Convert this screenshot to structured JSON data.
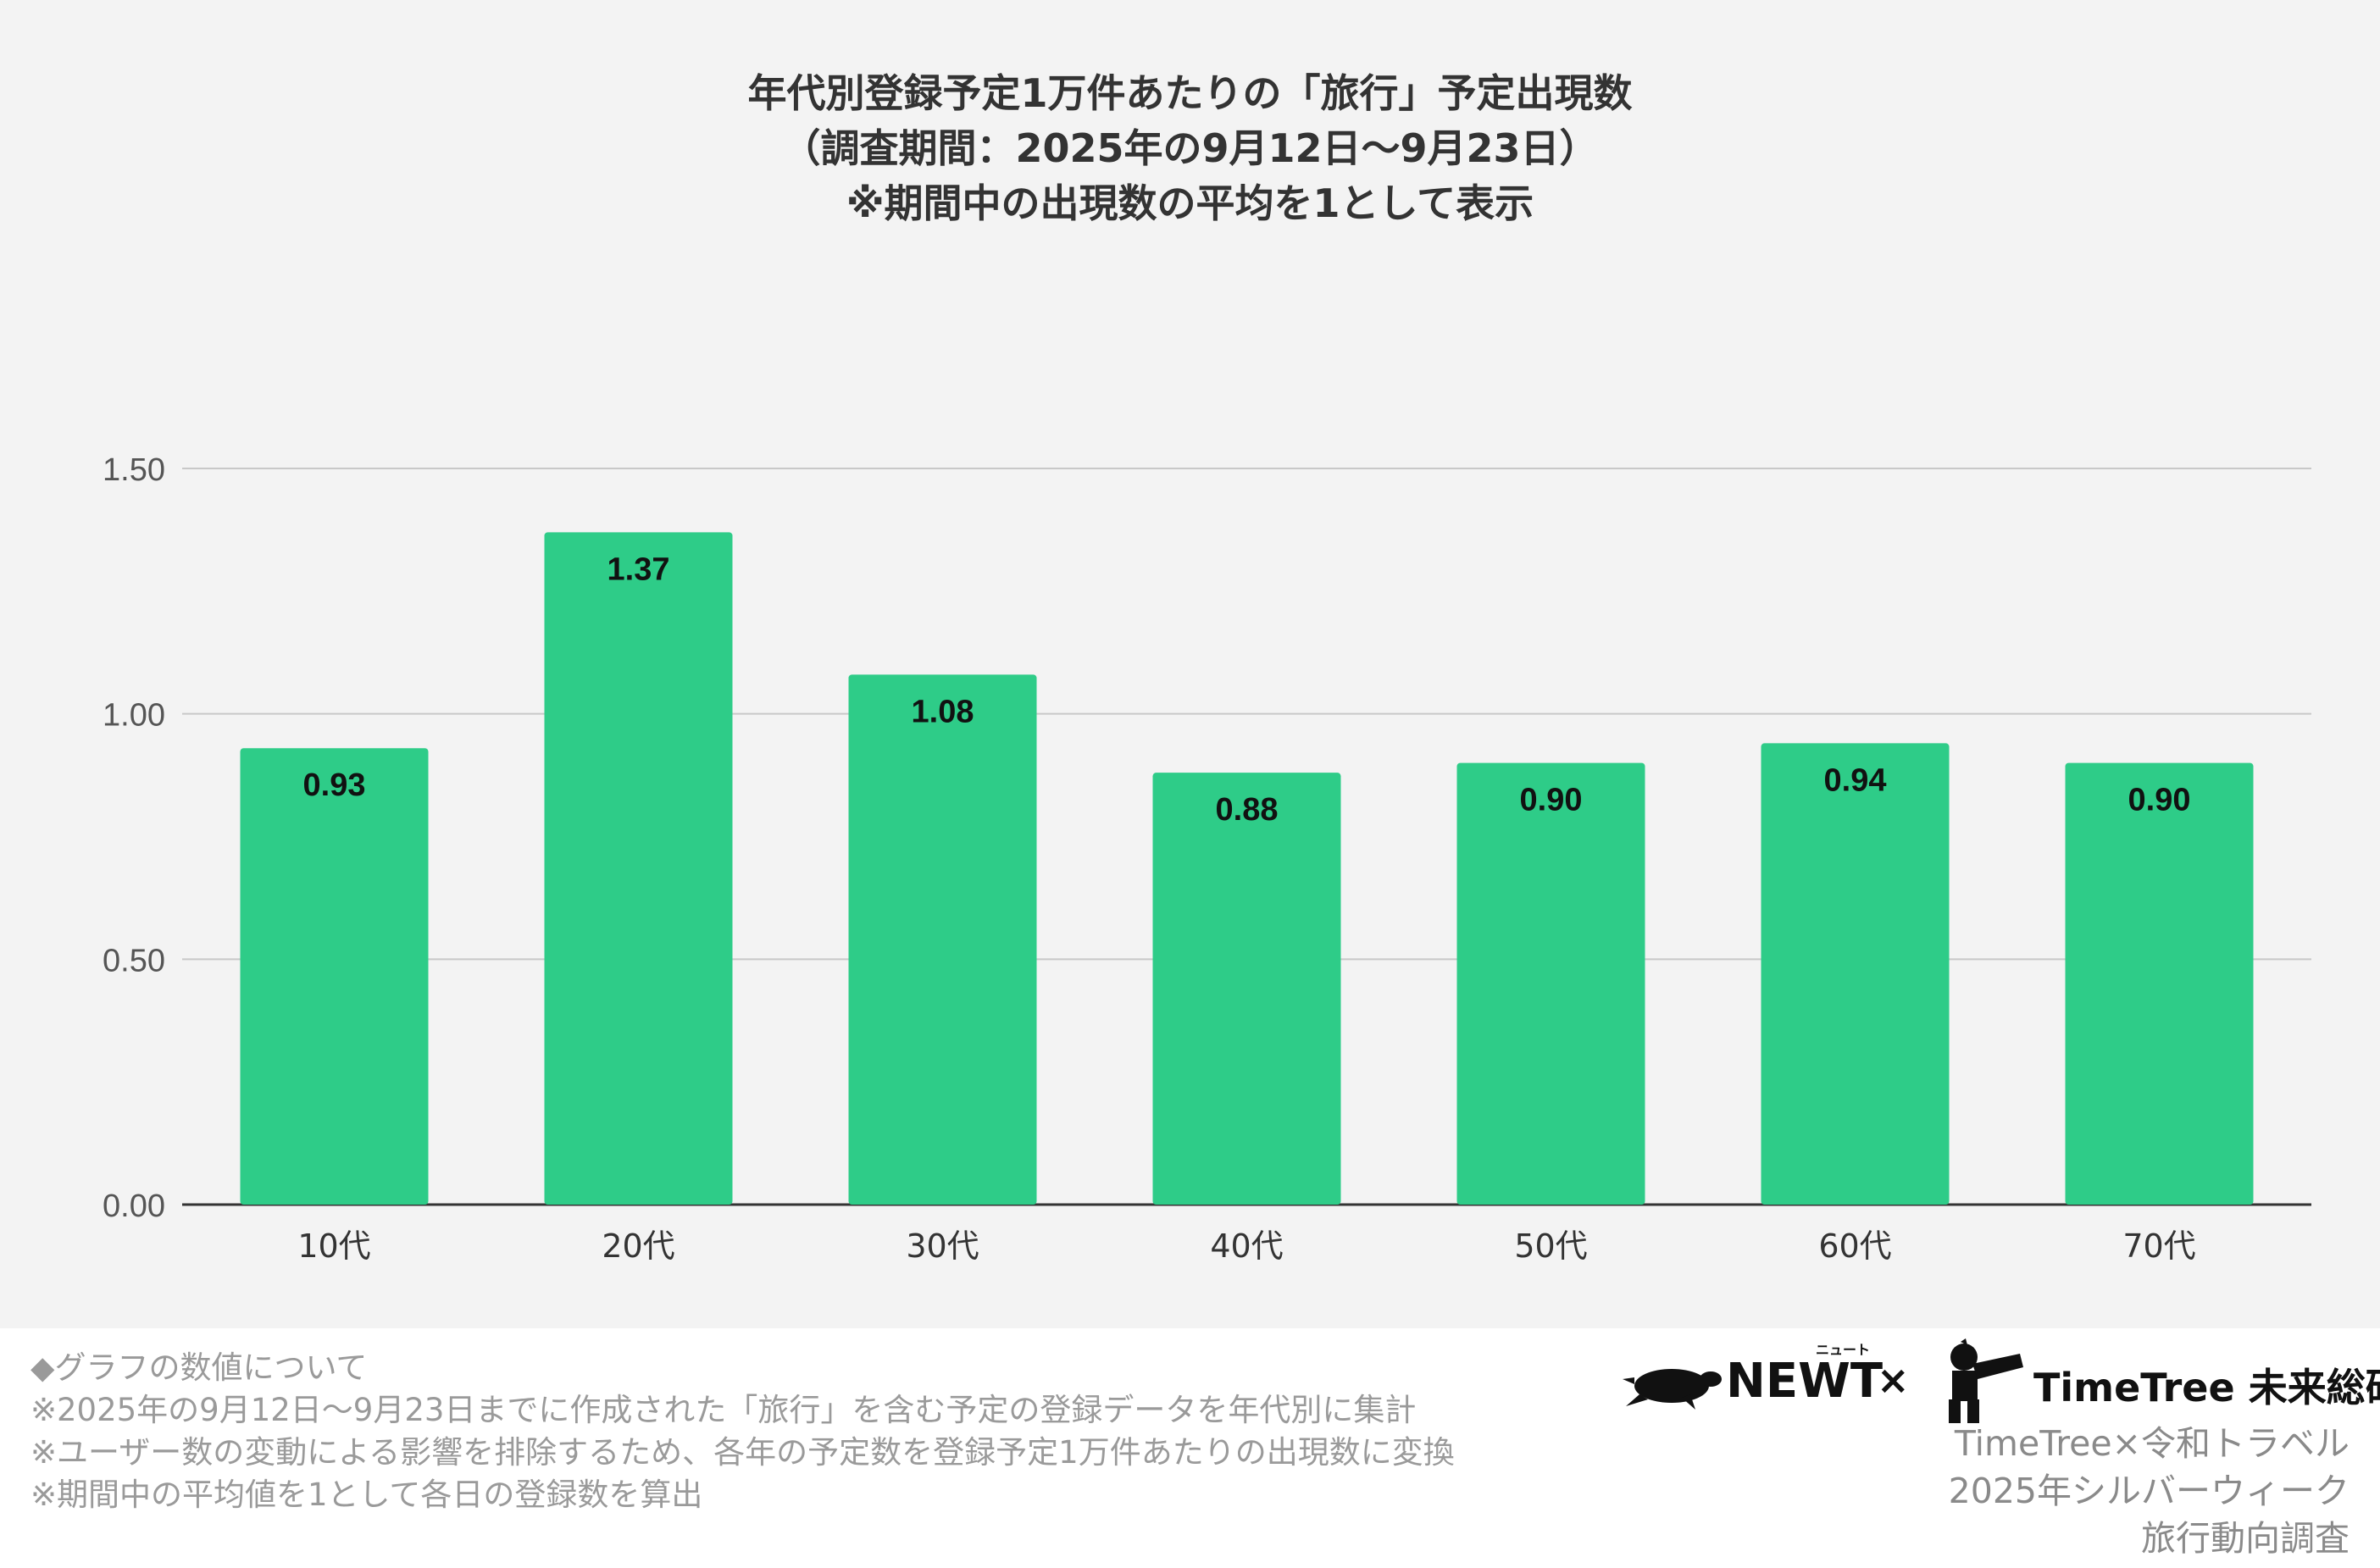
{
  "chart_data": {
    "type": "bar",
    "title_lines": [
      "年代別登録予定1万件あたりの「旅行」予定出現数",
      "（調査期間：2025年の9月12日〜9月23日）",
      "※期間中の出現数の平均を1として表示"
    ],
    "categories": [
      "10代",
      "20代",
      "30代",
      "40代",
      "50代",
      "60代",
      "70代"
    ],
    "values": [
      0.93,
      1.37,
      1.08,
      0.88,
      0.9,
      0.94,
      0.9
    ],
    "data_labels": [
      "0.93",
      "1.37",
      "1.08",
      "0.88",
      "0.90",
      "0.94",
      "0.90"
    ],
    "y_ticks": [
      "0.00",
      "0.50",
      "1.00",
      "1.50"
    ],
    "ylim": [
      0,
      1.5
    ],
    "grid": true,
    "bar_color": "#2ecc88",
    "xlabel": "",
    "ylabel": ""
  },
  "notes": [
    "◆グラフの数値について",
    "※2025年の9月12日〜9月23日までに作成された「旅行」を含む予定の登録データを年代別に集計",
    "※ユーザー数の変動による影響を排除するため、各年の予定数を登録予定1万件あたりの出現数に変換",
    "※期間中の平均値を1として各日の登録数を算出"
  ],
  "logos": {
    "newt_label": "NEWT",
    "newt_kana": "ニュート",
    "times_sign": "×",
    "timetree_label": "TimeTree 未来総研"
  },
  "credit_lines": [
    "TimeTree×令和トラベル",
    "2025年シルバーウィーク",
    "旅行動向調査"
  ]
}
